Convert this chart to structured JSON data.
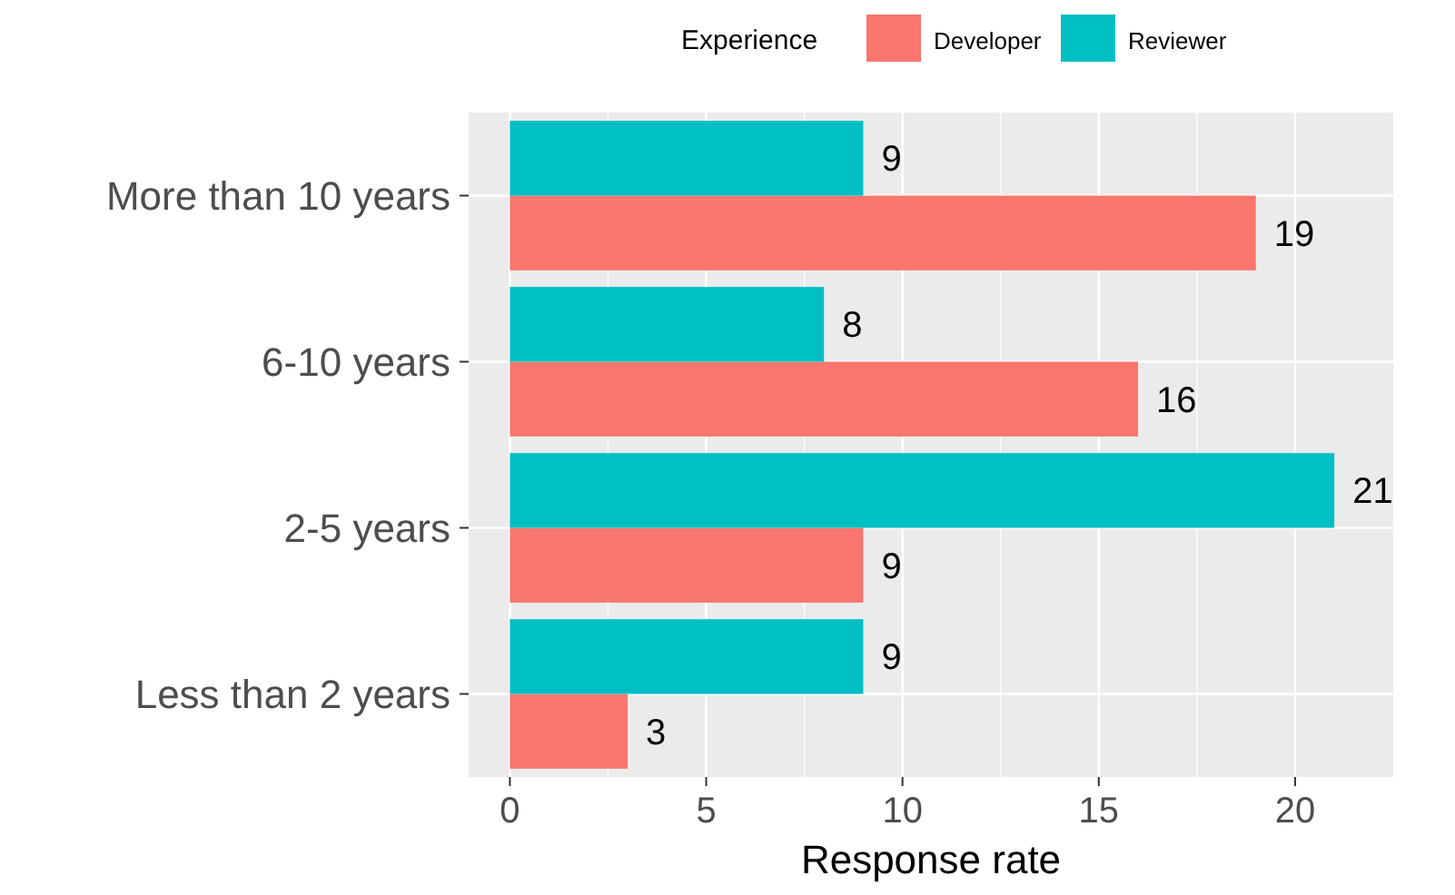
{
  "chart_data": {
    "type": "bar",
    "orientation": "horizontal",
    "xlabel": "Response rate",
    "legend_title": "Experience",
    "legend": "top",
    "grid": true,
    "data_labels": true,
    "categories": [
      "More than 10 years",
      "6-10 years",
      "2-5 years",
      "Less than 2 years"
    ],
    "xlim": [
      -1.05,
      22.5
    ],
    "xticks": [
      0,
      5,
      10,
      15,
      20
    ],
    "series": [
      {
        "name": "Developer",
        "color": "#f8766d",
        "values": [
          19,
          16,
          9,
          3
        ]
      },
      {
        "name": "Reviewer",
        "color": "#00bfc4",
        "values": [
          9,
          8,
          21,
          9
        ]
      }
    ]
  }
}
